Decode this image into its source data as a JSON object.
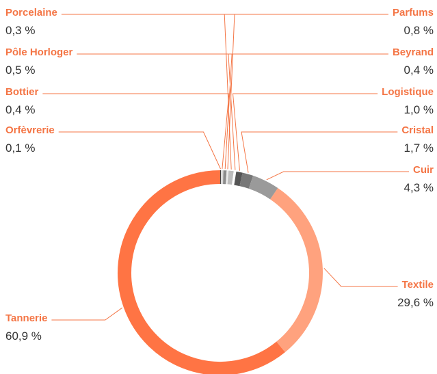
{
  "chart_data": {
    "type": "pie",
    "categories": [
      "Orfèvrerie",
      "Bottier",
      "Pôle Horloger",
      "Porcelaine",
      "Parfums",
      "Beyrand",
      "Logistique",
      "Cristal",
      "Cuir",
      "Textile",
      "Tannerie"
    ],
    "values": [
      0.1,
      0.4,
      0.5,
      0.3,
      0.8,
      0.4,
      1.0,
      1.7,
      4.3,
      29.6,
      60.9
    ],
    "value_labels": [
      "0,1 %",
      "0,4 %",
      "0,5 %",
      "0,3 %",
      "0,8 %",
      "0,4 %",
      "1,0 %",
      "1,7 %",
      "4,3 %",
      "29,6 %",
      "60,9 %"
    ],
    "colors": [
      "#111111",
      "#d9d9d9",
      "#8c8c8c",
      "#ececec",
      "#bdbdbd",
      "#ffffff",
      "#555555",
      "#777777",
      "#9a9a9a",
      "#ffa27e",
      "#ff7444"
    ]
  }
}
